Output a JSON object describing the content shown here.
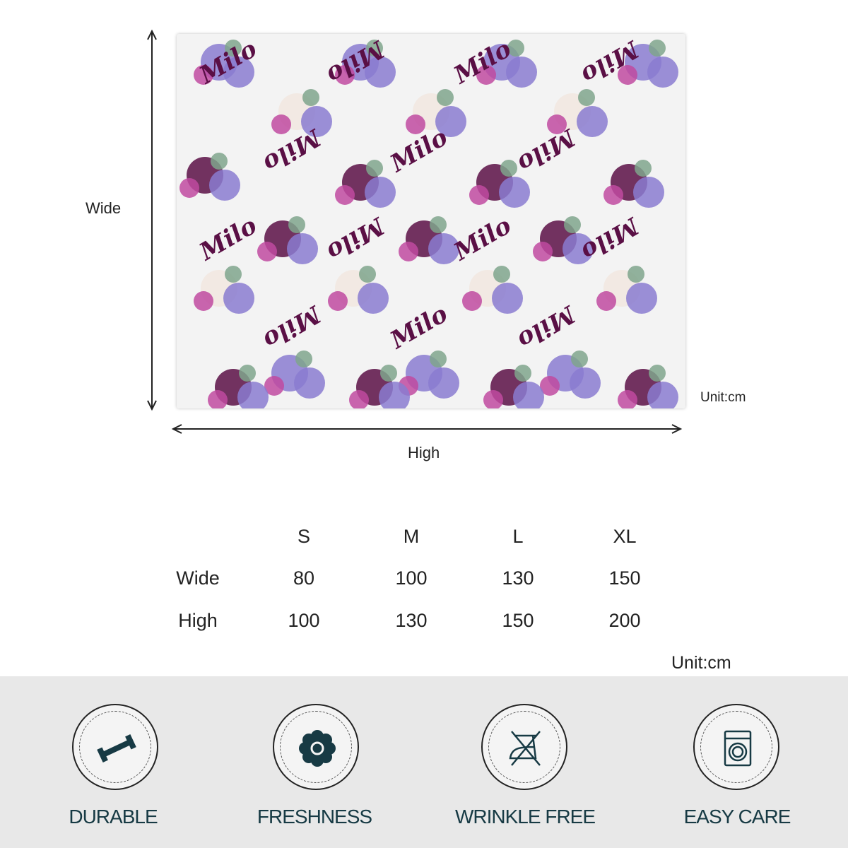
{
  "blanket": {
    "name_text": "Milo",
    "colors": {
      "plum": "#5a0f45",
      "violet": "#8a7bd0",
      "magenta": "#c04aa0",
      "cream": "#f1e6df",
      "leaf": "#7fa58c"
    }
  },
  "dimensions": {
    "vertical_label": "Wide",
    "horizontal_label": "High",
    "unit": "Unit:cm"
  },
  "size_table": {
    "headers": [
      "S",
      "M",
      "L",
      "XL"
    ],
    "rows": [
      {
        "label": "Wide",
        "values": [
          "80",
          "100",
          "130",
          "150"
        ]
      },
      {
        "label": "High",
        "values": [
          "100",
          "130",
          "150",
          "200"
        ]
      }
    ],
    "unit": "Unit:cm"
  },
  "features": [
    {
      "label": "DURABLE",
      "icon": "dumbbell-icon"
    },
    {
      "label": "FRESHNESS",
      "icon": "flower-icon"
    },
    {
      "label": "WRINKLE FREE",
      "icon": "no-iron-icon"
    },
    {
      "label": "EASY CARE",
      "icon": "washing-machine-icon"
    }
  ],
  "accent_color": "#173a44"
}
